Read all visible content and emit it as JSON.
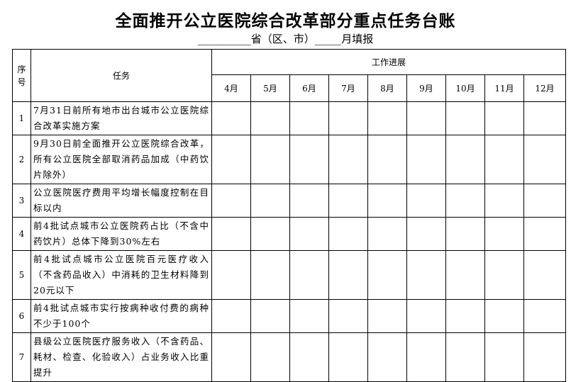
{
  "title": "全面推开公立医院综合改革部分重点任务台账",
  "subtitle": "__________省（区、市）_____月填报",
  "table": {
    "col_seq": "序号",
    "col_task": "任务",
    "col_progress": "工作进展",
    "months": [
      "4月",
      "5月",
      "6月",
      "7月",
      "8月",
      "9月",
      "10月",
      "11月",
      "12月"
    ],
    "rows": [
      {
        "seq": "1",
        "task": "7月31日前所有地市出台城市公立医院综合改革实施方案"
      },
      {
        "seq": "2",
        "task": "9月30日前全面推开公立医院综合改革，所有公立医院全部取消药品加成（中药饮片除外）"
      },
      {
        "seq": "3",
        "task": "公立医院医疗费用平均增长幅度控制在目标以内"
      },
      {
        "seq": "4",
        "task": "前4批试点城市公立医院药占比（不含中药饮片）总体下降到30%左右"
      },
      {
        "seq": "5",
        "task": "前4批试点城市公立医院百元医疗收入（不含药品收入）中消耗的卫生材料降到20元以下"
      },
      {
        "seq": "6",
        "task": "前4批试点城市实行按病种收付费的病种不少于100个"
      },
      {
        "seq": "7",
        "task": "县级公立医院医疗服务收入（不含药品、耗材、检查、化验收入）占业务收入比重提升"
      }
    ]
  }
}
